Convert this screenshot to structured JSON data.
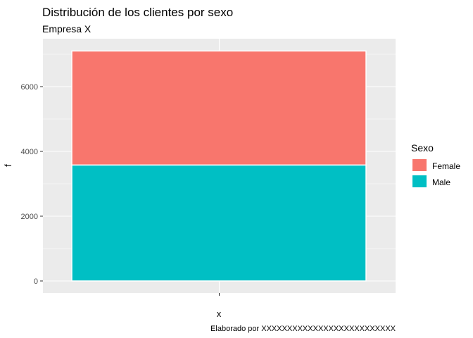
{
  "chart_data": {
    "type": "bar",
    "stacked": true,
    "title": "Distribución de los clientes por sexo",
    "subtitle": "Empresa X",
    "xlabel": "x",
    "ylabel": "f",
    "categories": [
      ""
    ],
    "ylim": [
      0,
      7100
    ],
    "yticks": [
      0,
      2000,
      4000,
      6000
    ],
    "grid": true,
    "legend": {
      "title": "Sexo",
      "placement": "right",
      "entries": [
        "Female",
        "Male"
      ]
    },
    "series": [
      {
        "name": "Male",
        "values": [
          3580
        ],
        "color": "#00BFC4"
      },
      {
        "name": "Female",
        "values": [
          3520
        ],
        "color": "#F8766D"
      }
    ],
    "caption": "Elaborado por XXXXXXXXXXXXXXXXXXXXXXXXXX"
  },
  "colors": {
    "panel_background": "#EBEBEB",
    "grid": "#FFFFFF"
  }
}
